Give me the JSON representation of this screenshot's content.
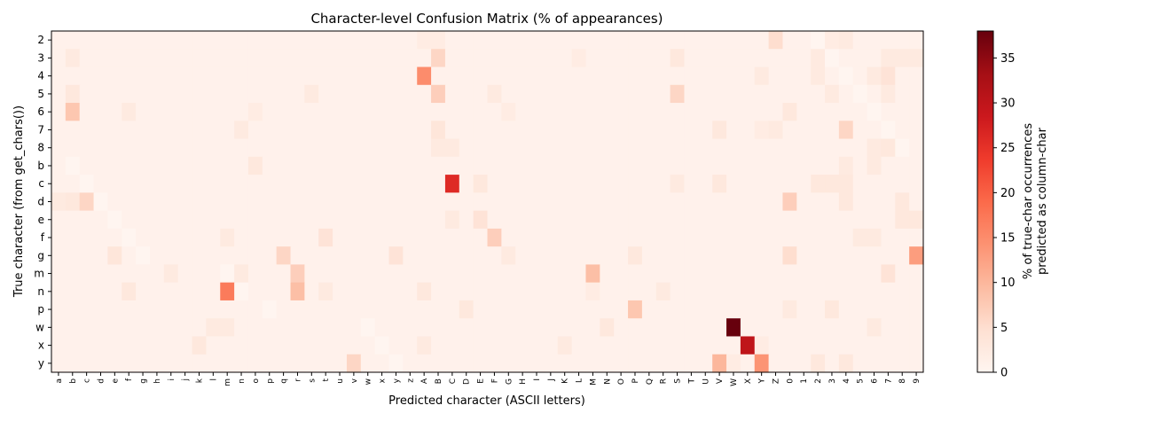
{
  "chart_data": {
    "type": "heatmap",
    "title": "Character-level Confusion Matrix (% of appearances)",
    "xlabel": "Predicted character (ASCII letters)",
    "ylabel": "True character (from get_chars())",
    "colorbar_label_lines": [
      "% of true-char occurrences",
      "predicted as column-char"
    ],
    "colorscale": "Reds",
    "vmin": 0,
    "vmax": 38,
    "colorbar_ticks": [
      "0",
      "5",
      "10",
      "15",
      "20",
      "25",
      "30",
      "35"
    ],
    "x_categories": [
      "a",
      "b",
      "c",
      "d",
      "e",
      "f",
      "g",
      "h",
      "i",
      "j",
      "k",
      "l",
      "m",
      "n",
      "o",
      "p",
      "q",
      "r",
      "s",
      "t",
      "u",
      "v",
      "w",
      "x",
      "y",
      "z",
      "A",
      "B",
      "C",
      "D",
      "E",
      "F",
      "G",
      "H",
      "I",
      "J",
      "K",
      "L",
      "M",
      "N",
      "O",
      "P",
      "Q",
      "R",
      "S",
      "T",
      "U",
      "V",
      "W",
      "X",
      "Y",
      "Z",
      "0",
      "1",
      "2",
      "3",
      "4",
      "5",
      "6",
      "7",
      "8",
      "9"
    ],
    "y_categories": [
      "2",
      "3",
      "4",
      "5",
      "6",
      "7",
      "8",
      "b",
      "c",
      "d",
      "e",
      "f",
      "g",
      "m",
      "n",
      "p",
      "w",
      "x",
      "y"
    ],
    "default_value": 0.8,
    "cells": [
      {
        "row": "2",
        "col": "Z",
        "value": 5
      },
      {
        "row": "2",
        "col": "A",
        "value": 2
      },
      {
        "row": "2",
        "col": "B",
        "value": 2
      },
      {
        "row": "2",
        "col": "2",
        "value": 0
      },
      {
        "row": "2",
        "col": "3",
        "value": 2
      },
      {
        "row": "2",
        "col": "4",
        "value": 2.5
      },
      {
        "row": "3",
        "col": "B",
        "value": 6
      },
      {
        "row": "3",
        "col": "b",
        "value": 2.5
      },
      {
        "row": "3",
        "col": "S",
        "value": 3
      },
      {
        "row": "3",
        "col": "L",
        "value": 2
      },
      {
        "row": "3",
        "col": "2",
        "value": 2.5
      },
      {
        "row": "3",
        "col": "3",
        "value": 0
      },
      {
        "row": "3",
        "col": "7",
        "value": 2.5
      },
      {
        "row": "3",
        "col": "8",
        "value": 2.5
      },
      {
        "row": "3",
        "col": "9",
        "value": 2.5
      },
      {
        "row": "4",
        "col": "A",
        "value": 15
      },
      {
        "row": "4",
        "col": "4",
        "value": 0
      },
      {
        "row": "4",
        "col": "7",
        "value": 4
      },
      {
        "row": "4",
        "col": "6",
        "value": 2.5
      },
      {
        "row": "4",
        "col": "Y",
        "value": 2.5
      },
      {
        "row": "4",
        "col": "2",
        "value": 2.5
      },
      {
        "row": "5",
        "col": "B",
        "value": 7
      },
      {
        "row": "5",
        "col": "S",
        "value": 6
      },
      {
        "row": "5",
        "col": "b",
        "value": 3
      },
      {
        "row": "5",
        "col": "s",
        "value": 2.5
      },
      {
        "row": "5",
        "col": "F",
        "value": 2.5
      },
      {
        "row": "5",
        "col": "3",
        "value": 2.5
      },
      {
        "row": "5",
        "col": "5",
        "value": 0
      },
      {
        "row": "5",
        "col": "7",
        "value": 2.5
      },
      {
        "row": "6",
        "col": "b",
        "value": 8
      },
      {
        "row": "6",
        "col": "f",
        "value": 2.5
      },
      {
        "row": "6",
        "col": "o",
        "value": 2
      },
      {
        "row": "6",
        "col": "0",
        "value": 3
      },
      {
        "row": "6",
        "col": "6",
        "value": 0
      },
      {
        "row": "6",
        "col": "G",
        "value": 2
      },
      {
        "row": "7",
        "col": "B",
        "value": 3.5
      },
      {
        "row": "7",
        "col": "4",
        "value": 6
      },
      {
        "row": "7",
        "col": "7",
        "value": 0
      },
      {
        "row": "7",
        "col": "n",
        "value": 2.5
      },
      {
        "row": "7",
        "col": "V",
        "value": 3
      },
      {
        "row": "7",
        "col": "Z",
        "value": 2.5
      },
      {
        "row": "7",
        "col": "Y",
        "value": 2
      },
      {
        "row": "8",
        "col": "8",
        "value": 0
      },
      {
        "row": "8",
        "col": "B",
        "value": 2.5
      },
      {
        "row": "8",
        "col": "C",
        "value": 2.5
      },
      {
        "row": "8",
        "col": "7",
        "value": 3
      },
      {
        "row": "8",
        "col": "6",
        "value": 2.5
      },
      {
        "row": "b",
        "col": "b",
        "value": 0
      },
      {
        "row": "b",
        "col": "o",
        "value": 3
      },
      {
        "row": "b",
        "col": "4",
        "value": 2.5
      },
      {
        "row": "b",
        "col": "6",
        "value": 2.5
      },
      {
        "row": "c",
        "col": "C",
        "value": 26
      },
      {
        "row": "c",
        "col": "c",
        "value": 0
      },
      {
        "row": "c",
        "col": "E",
        "value": 3
      },
      {
        "row": "c",
        "col": "V",
        "value": 3
      },
      {
        "row": "c",
        "col": "S",
        "value": 2.5
      },
      {
        "row": "c",
        "col": "2",
        "value": 3
      },
      {
        "row": "c",
        "col": "3",
        "value": 3
      },
      {
        "row": "c",
        "col": "4",
        "value": 3
      },
      {
        "row": "d",
        "col": "d",
        "value": 0
      },
      {
        "row": "d",
        "col": "c",
        "value": 6
      },
      {
        "row": "d",
        "col": "b",
        "value": 3
      },
      {
        "row": "d",
        "col": "a",
        "value": 2.5
      },
      {
        "row": "d",
        "col": "0",
        "value": 7
      },
      {
        "row": "d",
        "col": "4",
        "value": 3
      },
      {
        "row": "d",
        "col": "8",
        "value": 3
      },
      {
        "row": "e",
        "col": "e",
        "value": 0
      },
      {
        "row": "e",
        "col": "E",
        "value": 4
      },
      {
        "row": "e",
        "col": "C",
        "value": 2.5
      },
      {
        "row": "e",
        "col": "8",
        "value": 3
      },
      {
        "row": "e",
        "col": "9",
        "value": 3
      },
      {
        "row": "f",
        "col": "f",
        "value": 0
      },
      {
        "row": "f",
        "col": "F",
        "value": 7
      },
      {
        "row": "f",
        "col": "t",
        "value": 4
      },
      {
        "row": "f",
        "col": "m",
        "value": 2.5
      },
      {
        "row": "f",
        "col": "5",
        "value": 2.5
      },
      {
        "row": "f",
        "col": "6",
        "value": 2.5
      },
      {
        "row": "g",
        "col": "g",
        "value": 0
      },
      {
        "row": "g",
        "col": "9",
        "value": 13
      },
      {
        "row": "g",
        "col": "q",
        "value": 6
      },
      {
        "row": "g",
        "col": "0",
        "value": 5
      },
      {
        "row": "g",
        "col": "y",
        "value": 4
      },
      {
        "row": "g",
        "col": "e",
        "value": 3.5
      },
      {
        "row": "g",
        "col": "P",
        "value": 3
      },
      {
        "row": "g",
        "col": "G",
        "value": 2.5
      },
      {
        "row": "m",
        "col": "m",
        "value": 0
      },
      {
        "row": "m",
        "col": "M",
        "value": 9
      },
      {
        "row": "m",
        "col": "r",
        "value": 7
      },
      {
        "row": "m",
        "col": "7",
        "value": 4
      },
      {
        "row": "m",
        "col": "n",
        "value": 2.5
      },
      {
        "row": "m",
        "col": "i",
        "value": 2.5
      },
      {
        "row": "n",
        "col": "m",
        "value": 17
      },
      {
        "row": "n",
        "col": "n",
        "value": 0
      },
      {
        "row": "n",
        "col": "r",
        "value": 9
      },
      {
        "row": "n",
        "col": "f",
        "value": 3
      },
      {
        "row": "n",
        "col": "A",
        "value": 3
      },
      {
        "row": "n",
        "col": "t",
        "value": 2.5
      },
      {
        "row": "n",
        "col": "M",
        "value": 2
      },
      {
        "row": "n",
        "col": "R",
        "value": 2.5
      },
      {
        "row": "p",
        "col": "p",
        "value": 0
      },
      {
        "row": "p",
        "col": "P",
        "value": 8
      },
      {
        "row": "p",
        "col": "D",
        "value": 3
      },
      {
        "row": "p",
        "col": "3",
        "value": 3
      },
      {
        "row": "p",
        "col": "0",
        "value": 2.5
      },
      {
        "row": "w",
        "col": "W",
        "value": 38
      },
      {
        "row": "w",
        "col": "w",
        "value": 0
      },
      {
        "row": "w",
        "col": "N",
        "value": 3
      },
      {
        "row": "w",
        "col": "l",
        "value": 2.5
      },
      {
        "row": "w",
        "col": "m",
        "value": 2.5
      },
      {
        "row": "w",
        "col": "6",
        "value": 2.5
      },
      {
        "row": "x",
        "col": "X",
        "value": 30
      },
      {
        "row": "x",
        "col": "x",
        "value": 0
      },
      {
        "row": "x",
        "col": "k",
        "value": 3
      },
      {
        "row": "x",
        "col": "A",
        "value": 2.5
      },
      {
        "row": "x",
        "col": "K",
        "value": 2.5
      },
      {
        "row": "x",
        "col": "Y",
        "value": 2
      },
      {
        "row": "y",
        "col": "Y",
        "value": 14
      },
      {
        "row": "y",
        "col": "V",
        "value": 10
      },
      {
        "row": "y",
        "col": "v",
        "value": 6
      },
      {
        "row": "y",
        "col": "y",
        "value": 0
      },
      {
        "row": "y",
        "col": "2",
        "value": 3
      },
      {
        "row": "y",
        "col": "4",
        "value": 3
      },
      {
        "row": "y",
        "col": "W",
        "value": 2
      }
    ]
  }
}
